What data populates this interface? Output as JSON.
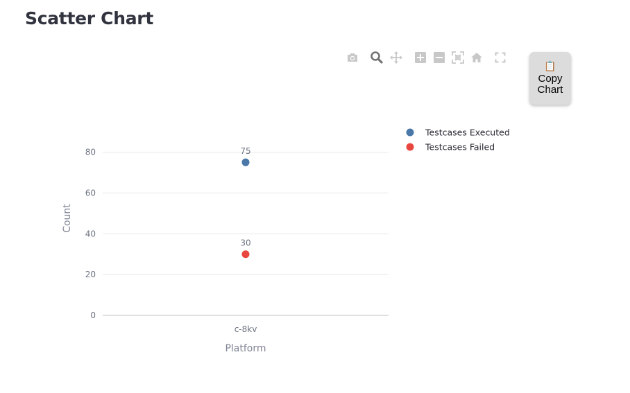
{
  "page": {
    "title": "Scatter Chart"
  },
  "toolbar": {
    "buttons": [
      {
        "name": "camera-icon",
        "tooltip": "Download plot as a png"
      },
      {
        "name": "zoom-icon",
        "tooltip": "Zoom"
      },
      {
        "name": "pan-icon",
        "tooltip": "Pan"
      },
      {
        "name": "zoom-in-icon",
        "tooltip": "Zoom in"
      },
      {
        "name": "zoom-out-icon",
        "tooltip": "Zoom out"
      },
      {
        "name": "autoscale-icon",
        "tooltip": "Autoscale"
      },
      {
        "name": "home-icon",
        "tooltip": "Reset axes"
      },
      {
        "name": "fullscreen-icon",
        "tooltip": "Fullscreen"
      }
    ],
    "copy_label": "Copy Chart",
    "copy_icon": "clipboard-icon"
  },
  "colors": {
    "executed": "#4a78a8",
    "failed": "#e8473f",
    "grid": "#e8e8e8",
    "modebar_icon": "#c8c8c8",
    "modebar_active": "#737373"
  },
  "chart_data": {
    "type": "scatter",
    "title": "",
    "xlabel": "Platform",
    "ylabel": "Count",
    "categories": [
      "c-8kv"
    ],
    "ylim": [
      -1,
      90
    ],
    "yticks": [
      0,
      20,
      40,
      60,
      80
    ],
    "grid": true,
    "legend_position": "top-right",
    "series": [
      {
        "name": "Testcases Executed",
        "color": "#4a78a8",
        "values": [
          75
        ],
        "labels": [
          "75"
        ]
      },
      {
        "name": "Testcases Failed",
        "color": "#e8473f",
        "values": [
          30
        ],
        "labels": [
          "30"
        ]
      }
    ]
  }
}
